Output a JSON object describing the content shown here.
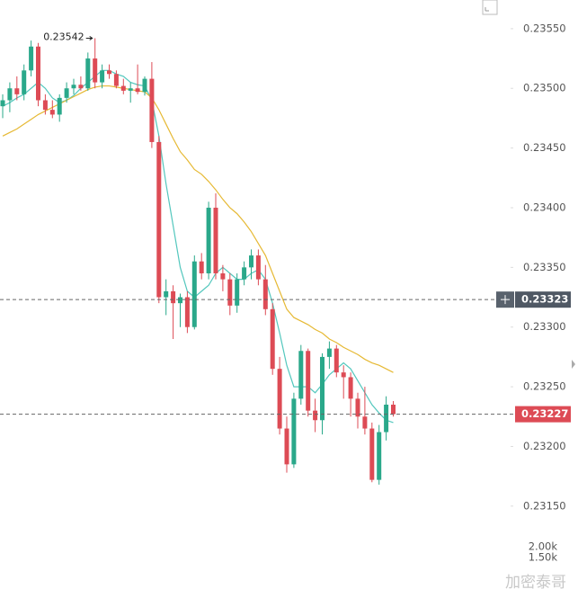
{
  "chart_data": {
    "type": "candlestick",
    "open": [
      0.23485,
      0.2349,
      0.235,
      0.23495,
      0.23515,
      0.23535,
      0.2349,
      0.23482,
      0.23478,
      0.23492,
      0.235,
      0.23503,
      0.235,
      0.23525,
      0.23505,
      0.23515,
      0.23512,
      0.23502,
      0.23498,
      0.235,
      0.23497,
      0.23508,
      0.23455,
      0.23325,
      0.2333,
      0.2332,
      0.23325,
      0.233,
      0.23355,
      0.23345,
      0.234,
      0.23345,
      0.2334,
      0.23318,
      0.2334,
      0.2335,
      0.2336,
      0.2334,
      0.23315,
      0.23265,
      0.23215,
      0.23185,
      0.2324,
      0.2328,
      0.2323,
      0.23222,
      0.23275,
      0.23282,
      0.23262,
      0.23258,
      0.2324,
      0.23225,
      0.23215,
      0.23172,
      0.23212,
      0.23235
    ],
    "high": [
      0.23495,
      0.23505,
      0.2351,
      0.2352,
      0.2354,
      0.23538,
      0.23495,
      0.2349,
      0.23495,
      0.23505,
      0.23508,
      0.2351,
      0.2353,
      0.23542,
      0.2352,
      0.2352,
      0.23515,
      0.23508,
      0.23505,
      0.2352,
      0.2351,
      0.23522,
      0.2346,
      0.2334,
      0.23335,
      0.23328,
      0.2333,
      0.2336,
      0.23362,
      0.23405,
      0.23412,
      0.23352,
      0.23345,
      0.23345,
      0.23355,
      0.23365,
      0.23365,
      0.23352,
      0.2332,
      0.23275,
      0.23225,
      0.23245,
      0.23285,
      0.23282,
      0.2324,
      0.23278,
      0.23288,
      0.23285,
      0.23268,
      0.23262,
      0.23245,
      0.2325,
      0.2322,
      0.23218,
      0.23242,
      0.23238
    ],
    "low": [
      0.23475,
      0.2348,
      0.2349,
      0.2349,
      0.2351,
      0.23485,
      0.23478,
      0.23475,
      0.23472,
      0.23488,
      0.23495,
      0.23498,
      0.23498,
      0.235,
      0.235,
      0.23508,
      0.235,
      0.23495,
      0.23488,
      0.23495,
      0.23494,
      0.2345,
      0.2332,
      0.2331,
      0.2329,
      0.233,
      0.23295,
      0.23298,
      0.2334,
      0.2334,
      0.2334,
      0.2333,
      0.2331,
      0.23312,
      0.23335,
      0.2334,
      0.23335,
      0.2331,
      0.2326,
      0.2321,
      0.23178,
      0.23182,
      0.23235,
      0.23225,
      0.23212,
      0.2321,
      0.23265,
      0.23258,
      0.2324,
      0.23225,
      0.23215,
      0.2321,
      0.2317,
      0.23168,
      0.23205,
      0.23225
    ],
    "close": [
      0.2349,
      0.235,
      0.23495,
      0.23515,
      0.23535,
      0.2349,
      0.23482,
      0.23478,
      0.23492,
      0.235,
      0.23503,
      0.235,
      0.23525,
      0.23505,
      0.23515,
      0.23512,
      0.23502,
      0.23498,
      0.235,
      0.23497,
      0.23508,
      0.23455,
      0.23325,
      0.2333,
      0.2332,
      0.23325,
      0.233,
      0.23355,
      0.23345,
      0.234,
      0.23345,
      0.2334,
      0.23318,
      0.2334,
      0.2335,
      0.2336,
      0.2334,
      0.23315,
      0.23265,
      0.23215,
      0.23185,
      0.2324,
      0.2328,
      0.2323,
      0.23222,
      0.23275,
      0.23282,
      0.23262,
      0.23258,
      0.2324,
      0.23225,
      0.23215,
      0.23172,
      0.23212,
      0.23235,
      0.23227
    ],
    "up_color": "#2aa88a",
    "down_color": "#dd4b55",
    "series": [
      {
        "color": "#53c7bd",
        "values": [
          0.23485,
          0.23488,
          0.23492,
          0.23495,
          0.235,
          0.23505,
          0.235,
          0.23492,
          0.23488,
          0.2349,
          0.23494,
          0.235,
          0.23505,
          0.2351,
          0.23515,
          0.23515,
          0.23512,
          0.2351,
          0.23505,
          0.23503,
          0.23502,
          0.2349,
          0.2346,
          0.2342,
          0.23385,
          0.2335,
          0.2333,
          0.23325,
          0.2333,
          0.23335,
          0.23345,
          0.2335,
          0.23345,
          0.2334,
          0.2334,
          0.23345,
          0.23348,
          0.2334,
          0.2332,
          0.23295,
          0.23268,
          0.2325,
          0.2325,
          0.2325,
          0.23245,
          0.23252,
          0.2326,
          0.23265,
          0.2327,
          0.23265,
          0.23255,
          0.23245,
          0.23235,
          0.23228,
          0.23222,
          0.2322
        ]
      },
      {
        "color": "#e6b934",
        "values": [
          0.2346,
          0.23463,
          0.23466,
          0.2347,
          0.23474,
          0.23478,
          0.23481,
          0.23484,
          0.23487,
          0.2349,
          0.23493,
          0.23496,
          0.23499,
          0.23501,
          0.23502,
          0.23502,
          0.23501,
          0.235,
          0.23499,
          0.23498,
          0.23497,
          0.23492,
          0.23482,
          0.2347,
          0.23458,
          0.23447,
          0.2344,
          0.23432,
          0.23428,
          0.23422,
          0.23415,
          0.23407,
          0.234,
          0.23395,
          0.23388,
          0.2338,
          0.2337,
          0.2336,
          0.23345,
          0.2333,
          0.23315,
          0.23308,
          0.23305,
          0.23302,
          0.23298,
          0.23295,
          0.2329,
          0.23287,
          0.23283,
          0.2328,
          0.23277,
          0.23273,
          0.2327,
          0.23268,
          0.23265,
          0.23262
        ]
      }
    ],
    "ylim": [
      0.23122,
      0.23574
    ],
    "yticks": [
      {
        "value": 0.2315,
        "label": "0.23150"
      },
      {
        "value": 0.232,
        "label": "0.23200"
      },
      {
        "value": 0.2325,
        "label": "0.23250"
      },
      {
        "value": 0.233,
        "label": "0.23300"
      },
      {
        "value": 0.2335,
        "label": "0.23350"
      },
      {
        "value": 0.234,
        "label": "0.23400"
      },
      {
        "value": 0.2345,
        "label": "0.23450"
      },
      {
        "value": 0.235,
        "label": "0.23500"
      },
      {
        "value": 0.2355,
        "label": "0.23550"
      }
    ],
    "high_annotation": 0.23542,
    "last_price": 0.23227,
    "crosshair_price": 0.23323,
    "volume_ticks": [
      {
        "value": 2000,
        "label": "2.00k"
      },
      {
        "value": 1500,
        "label": "1.50k"
      }
    ],
    "watermark": "加密泰哥"
  }
}
